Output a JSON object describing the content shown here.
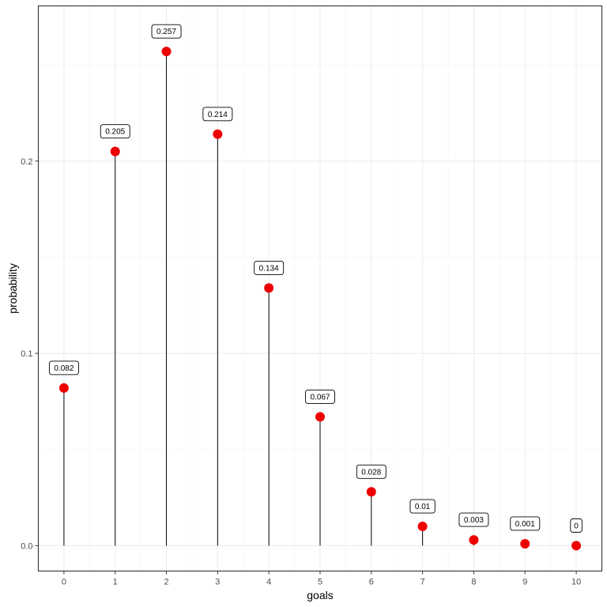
{
  "chart_data": {
    "type": "lollipop",
    "xlabel": "goals",
    "ylabel": "probability",
    "x": [
      0,
      1,
      2,
      3,
      4,
      5,
      6,
      7,
      8,
      9,
      10
    ],
    "values": [
      0.082,
      0.205,
      0.257,
      0.214,
      0.134,
      0.067,
      0.028,
      0.01,
      0.003,
      0.001,
      0
    ],
    "labels": [
      "0.082",
      "0.205",
      "0.257",
      "0.214",
      "0.134",
      "0.067",
      "0.028",
      "0.01",
      "0.003",
      "0.001",
      "0"
    ],
    "x_ticks": [
      "0",
      "1",
      "2",
      "3",
      "4",
      "5",
      "6",
      "7",
      "8",
      "9",
      "10"
    ],
    "y_ticks": [
      "0.0",
      "0.1",
      "0.2"
    ],
    "xlim": [
      -0.5,
      10.5
    ],
    "ylim": [
      -0.0132,
      0.2807
    ],
    "grid": true,
    "point_color": "#ee0000",
    "stem_color": "#000000"
  }
}
